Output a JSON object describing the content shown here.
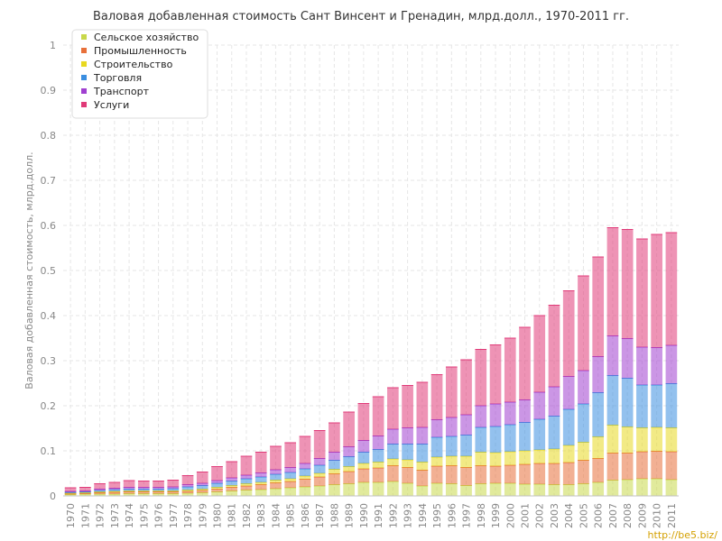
{
  "chart_data": {
    "type": "bar",
    "stacked": true,
    "title": "Валовая добавленная стоимость Сант Винсент и Гренадин, млрд.долл., 1970-2011 гг.",
    "ylabel": "Валовая добавленная стоимость, млрд.долл.",
    "xlabel": "",
    "ylim": [
      0,
      1
    ],
    "yticks": [
      "0",
      "0.1",
      "0.2",
      "0.3",
      "0.4",
      "0.5",
      "0.6",
      "0.7",
      "0.8",
      "0.9",
      "1"
    ],
    "grid": true,
    "legend_position": "top-left",
    "categories": [
      "1970",
      "1971",
      "1972",
      "1973",
      "1974",
      "1975",
      "1976",
      "1977",
      "1978",
      "1979",
      "1980",
      "1981",
      "1982",
      "1983",
      "1984",
      "1985",
      "1986",
      "1987",
      "1988",
      "1989",
      "1990",
      "1991",
      "1992",
      "1993",
      "1994",
      "1995",
      "1996",
      "1997",
      "1998",
      "1999",
      "2000",
      "2001",
      "2002",
      "2003",
      "2004",
      "2005",
      "2006",
      "2007",
      "2008",
      "2009",
      "2010",
      "2011"
    ],
    "series": [
      {
        "name": "Сельское хозяйство",
        "color": "#c8d84a",
        "values": [
          0.003,
          0.004,
          0.004,
          0.004,
          0.005,
          0.005,
          0.005,
          0.005,
          0.006,
          0.007,
          0.009,
          0.011,
          0.013,
          0.014,
          0.016,
          0.018,
          0.02,
          0.022,
          0.025,
          0.027,
          0.03,
          0.03,
          0.032,
          0.028,
          0.022,
          0.028,
          0.027,
          0.023,
          0.027,
          0.028,
          0.028,
          0.026,
          0.026,
          0.025,
          0.025,
          0.027,
          0.03,
          0.035,
          0.036,
          0.038,
          0.038,
          0.036
        ]
      },
      {
        "name": "Промышленность",
        "color": "#e8703a",
        "values": [
          0.002,
          0.002,
          0.003,
          0.004,
          0.004,
          0.004,
          0.004,
          0.004,
          0.004,
          0.005,
          0.006,
          0.008,
          0.009,
          0.011,
          0.013,
          0.014,
          0.017,
          0.02,
          0.024,
          0.027,
          0.03,
          0.032,
          0.035,
          0.035,
          0.035,
          0.038,
          0.04,
          0.04,
          0.04,
          0.038,
          0.04,
          0.044,
          0.046,
          0.047,
          0.049,
          0.052,
          0.053,
          0.06,
          0.059,
          0.06,
          0.061,
          0.062
        ]
      },
      {
        "name": "Строительство",
        "color": "#e8d820",
        "values": [
          0.001,
          0.001,
          0.002,
          0.002,
          0.002,
          0.002,
          0.002,
          0.002,
          0.003,
          0.003,
          0.004,
          0.004,
          0.005,
          0.005,
          0.006,
          0.006,
          0.007,
          0.008,
          0.01,
          0.011,
          0.012,
          0.013,
          0.015,
          0.017,
          0.018,
          0.02,
          0.021,
          0.025,
          0.03,
          0.03,
          0.03,
          0.03,
          0.03,
          0.032,
          0.038,
          0.04,
          0.048,
          0.062,
          0.058,
          0.053,
          0.053,
          0.053
        ]
      },
      {
        "name": "Торговля",
        "color": "#3a8ee0",
        "values": [
          0.002,
          0.002,
          0.003,
          0.004,
          0.004,
          0.004,
          0.004,
          0.005,
          0.007,
          0.008,
          0.009,
          0.01,
          0.011,
          0.012,
          0.013,
          0.014,
          0.016,
          0.018,
          0.02,
          0.022,
          0.025,
          0.028,
          0.033,
          0.035,
          0.04,
          0.044,
          0.044,
          0.047,
          0.055,
          0.058,
          0.06,
          0.063,
          0.068,
          0.073,
          0.08,
          0.085,
          0.098,
          0.11,
          0.108,
          0.095,
          0.094,
          0.098
        ]
      },
      {
        "name": "Транспорт",
        "color": "#a040d0",
        "values": [
          0.002,
          0.002,
          0.003,
          0.003,
          0.004,
          0.004,
          0.004,
          0.004,
          0.005,
          0.005,
          0.006,
          0.007,
          0.008,
          0.009,
          0.01,
          0.011,
          0.012,
          0.015,
          0.018,
          0.022,
          0.026,
          0.03,
          0.033,
          0.036,
          0.037,
          0.039,
          0.042,
          0.045,
          0.048,
          0.05,
          0.05,
          0.05,
          0.06,
          0.065,
          0.073,
          0.074,
          0.08,
          0.088,
          0.088,
          0.084,
          0.083,
          0.085
        ]
      },
      {
        "name": "Услуги",
        "color": "#e03a78",
        "values": [
          0.008,
          0.008,
          0.012,
          0.013,
          0.015,
          0.014,
          0.014,
          0.015,
          0.02,
          0.025,
          0.031,
          0.036,
          0.042,
          0.046,
          0.052,
          0.055,
          0.06,
          0.062,
          0.065,
          0.077,
          0.082,
          0.087,
          0.092,
          0.094,
          0.1,
          0.1,
          0.112,
          0.122,
          0.125,
          0.131,
          0.142,
          0.161,
          0.17,
          0.181,
          0.19,
          0.21,
          0.221,
          0.24,
          0.242,
          0.24,
          0.251,
          0.25
        ]
      }
    ]
  },
  "watermark": "http://be5.biz/"
}
